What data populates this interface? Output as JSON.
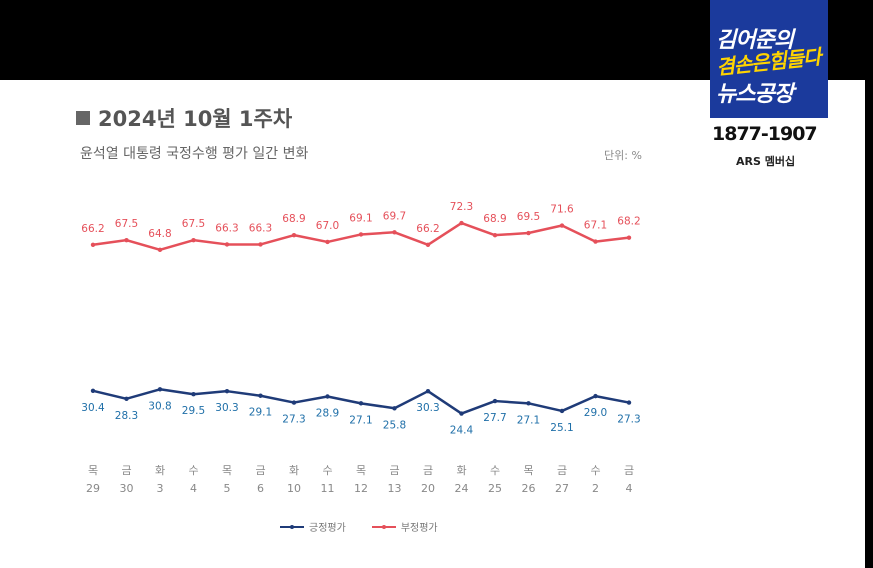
{
  "header": {
    "title": "2024년 10월 1주차",
    "subtitle": "윤석열 대통령 국정수행 평가 일간 변화",
    "unit": "단위: %"
  },
  "logo": {
    "line1": "김어준의",
    "line2": "겸손은힘들다",
    "line3": "뉴스공장",
    "phone": "1877-1907",
    "ars": "ARS 멤버십"
  },
  "colors": {
    "positive": "#1f3b78",
    "negative": "#e5505a",
    "positive_label": "#1f6fa8"
  },
  "chart_data": {
    "type": "line",
    "categories": [
      {
        "day": "목",
        "date": "29"
      },
      {
        "day": "금",
        "date": "30"
      },
      {
        "day": "화",
        "date": "3"
      },
      {
        "day": "수",
        "date": "4"
      },
      {
        "day": "목",
        "date": "5"
      },
      {
        "day": "금",
        "date": "6"
      },
      {
        "day": "화",
        "date": "10"
      },
      {
        "day": "수",
        "date": "11"
      },
      {
        "day": "목",
        "date": "12"
      },
      {
        "day": "금",
        "date": "13"
      },
      {
        "day": "금",
        "date": "20"
      },
      {
        "day": "화",
        "date": "24"
      },
      {
        "day": "수",
        "date": "25"
      },
      {
        "day": "목",
        "date": "26"
      },
      {
        "day": "금",
        "date": "27"
      },
      {
        "day": "수",
        "date": "2"
      },
      {
        "day": "금",
        "date": "4"
      }
    ],
    "series": [
      {
        "name": "긍정평가",
        "values": [
          30.4,
          28.3,
          30.8,
          29.5,
          30.3,
          29.1,
          27.3,
          28.9,
          27.1,
          25.8,
          30.3,
          24.4,
          27.7,
          27.1,
          25.1,
          29.0,
          27.3
        ],
        "labels": [
          "30.4",
          "28.3",
          "30.8",
          "29.5",
          "30.3",
          "29.1",
          "27.3",
          "28.9",
          "27.1",
          "25.8",
          "30.3",
          "24.4",
          "27.7",
          "27.1",
          "25.1",
          "29.0",
          "27.3"
        ]
      },
      {
        "name": "부정평가",
        "values": [
          66.2,
          67.5,
          64.8,
          67.5,
          66.3,
          66.3,
          68.9,
          67.0,
          69.1,
          69.7,
          66.2,
          72.3,
          68.9,
          69.5,
          71.6,
          67.1,
          68.2
        ],
        "labels": [
          "66.2",
          "67.5",
          "64.8",
          "67.5",
          "66.3",
          "66.3",
          "68.9",
          "67.0",
          "69.1",
          "69.7",
          "66.2",
          "72.3",
          "68.9",
          "69.5",
          "71.6",
          "67.1",
          "68.2"
        ]
      }
    ],
    "legend_position": "bottom",
    "grid": false
  }
}
